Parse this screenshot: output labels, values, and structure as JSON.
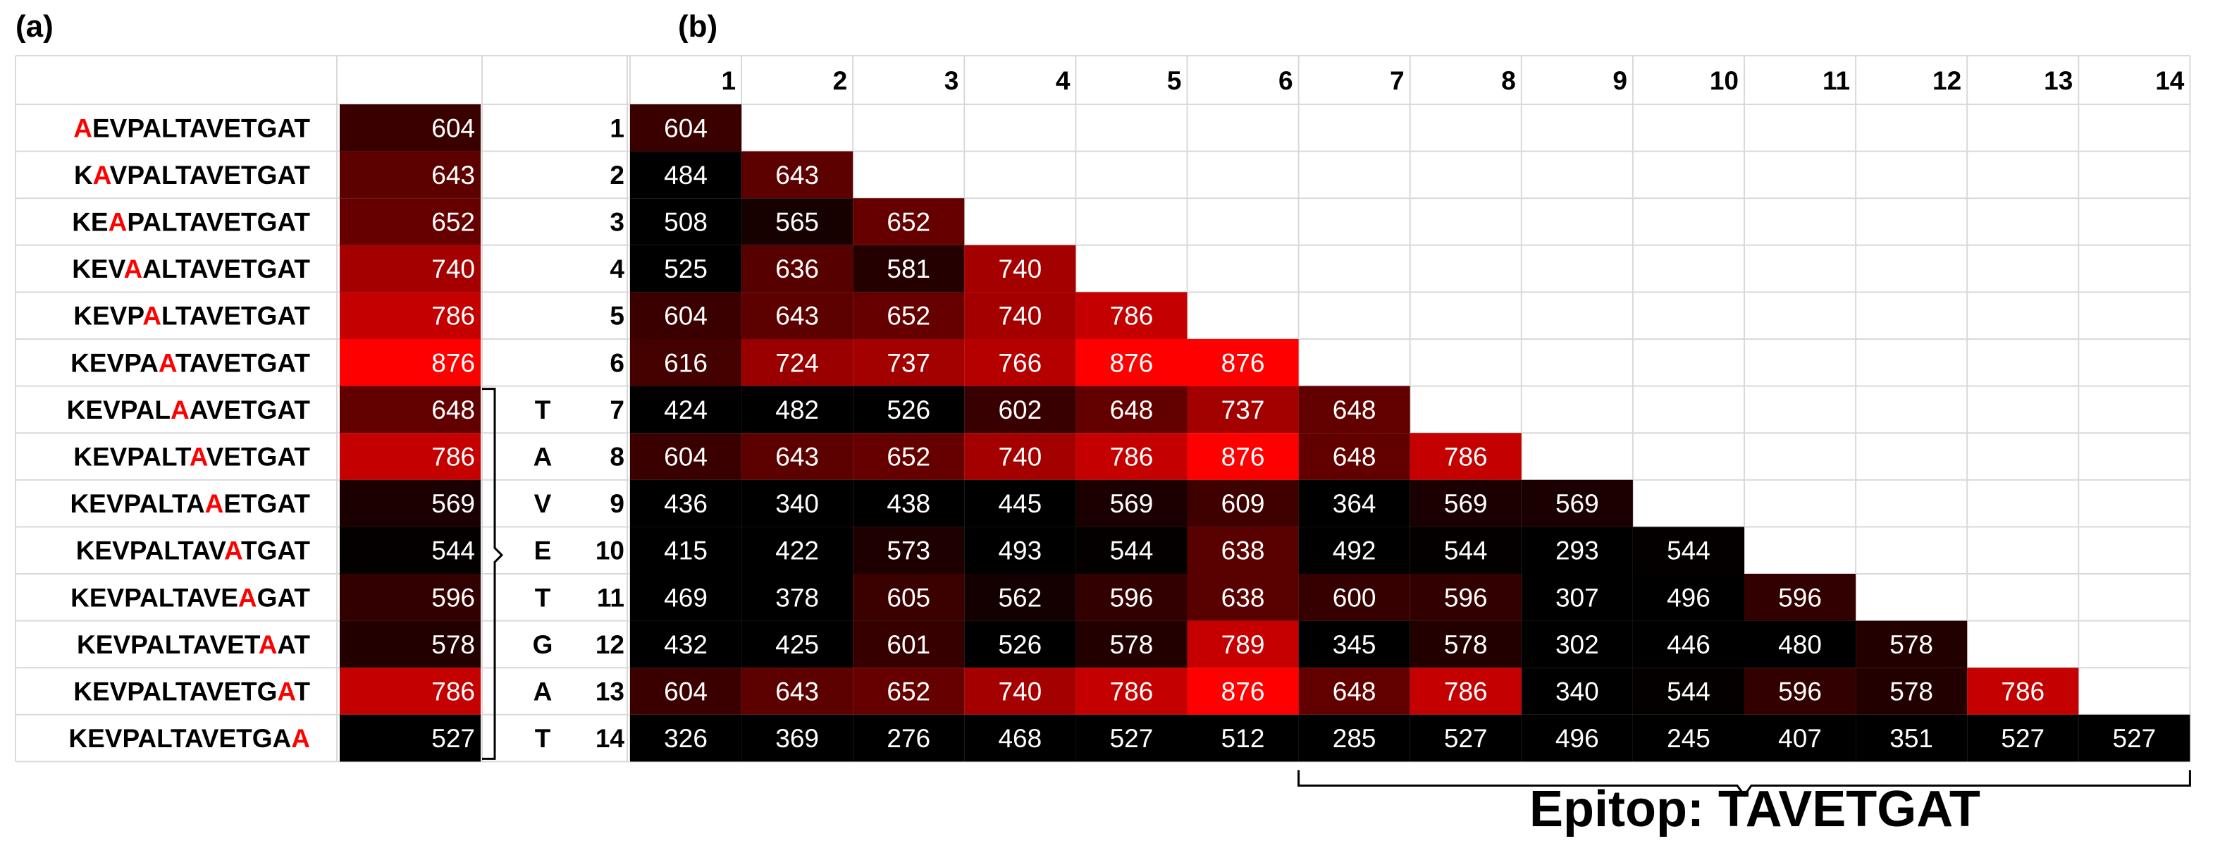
{
  "panel_labels": {
    "a": "(a)",
    "b": "(b)"
  },
  "epitope_label": "Epitop: TAVETGAT",
  "colors": {
    "low": "#000000",
    "mid": "#7a0000",
    "high": "#ff0000",
    "mutation": "#ff0000",
    "grid": "#d9d9d9"
  },
  "chart_data": [
    {
      "type": "heatmap",
      "panel": "(a)",
      "rows": [
        {
          "sequence": "AEVPALTAVETGAT",
          "mutation_index": 0,
          "value": 604
        },
        {
          "sequence": "KAVPALTAVETGAT",
          "mutation_index": 1,
          "value": 643
        },
        {
          "sequence": "KEAPALTAVETGAT",
          "mutation_index": 2,
          "value": 652
        },
        {
          "sequence": "KEVAALTAVETGAT",
          "mutation_index": 3,
          "value": 740
        },
        {
          "sequence": "KEVPALTAVETGAT",
          "mutation_index": 4,
          "value": 786
        },
        {
          "sequence": "KEVPAATAVETGAT",
          "mutation_index": 5,
          "value": 876
        },
        {
          "sequence": "KEVPALAAVETGAT",
          "mutation_index": 6,
          "value": 648
        },
        {
          "sequence": "KEVPALTAVETGAT",
          "mutation_index": 7,
          "value": 786
        },
        {
          "sequence": "KEVPALTAAETGAT",
          "mutation_index": 8,
          "value": 569
        },
        {
          "sequence": "KEVPALTAVATGAT",
          "mutation_index": 9,
          "value": 544
        },
        {
          "sequence": "KEVPALTAVEAGAT",
          "mutation_index": 10,
          "value": 596
        },
        {
          "sequence": "KEVPALTAVETAAT",
          "mutation_index": 11,
          "value": 578
        },
        {
          "sequence": "KEVPALTAVETGAT",
          "mutation_index": 12,
          "value": 786
        },
        {
          "sequence": "KEVPALTAVETGAA",
          "mutation_index": 13,
          "value": 527
        }
      ]
    },
    {
      "type": "heatmap",
      "panel": "(b)",
      "x": [
        "1",
        "2",
        "3",
        "4",
        "5",
        "6",
        "7",
        "8",
        "9",
        "10",
        "11",
        "12",
        "13",
        "14"
      ],
      "y": [
        "1",
        "2",
        "3",
        "4",
        "5",
        "6",
        "7",
        "8",
        "9",
        "10",
        "11",
        "12",
        "13",
        "14"
      ],
      "residue_labels": [
        "",
        "",
        "",
        "",
        "",
        "",
        "T",
        "A",
        "V",
        "E",
        "T",
        "G",
        "A",
        "T"
      ],
      "values": [
        [
          604
        ],
        [
          484,
          643
        ],
        [
          508,
          565,
          652
        ],
        [
          525,
          636,
          581,
          740
        ],
        [
          604,
          643,
          652,
          740,
          786
        ],
        [
          616,
          724,
          737,
          766,
          876,
          876
        ],
        [
          424,
          482,
          526,
          602,
          648,
          737,
          648
        ],
        [
          604,
          643,
          652,
          740,
          786,
          876,
          648,
          786
        ],
        [
          436,
          340,
          438,
          445,
          569,
          609,
          364,
          569,
          569
        ],
        [
          415,
          422,
          573,
          493,
          544,
          638,
          492,
          544,
          293,
          544
        ],
        [
          469,
          378,
          605,
          562,
          596,
          638,
          600,
          596,
          307,
          496,
          596
        ],
        [
          432,
          425,
          601,
          526,
          578,
          789,
          345,
          578,
          302,
          446,
          480,
          578
        ],
        [
          604,
          643,
          652,
          740,
          786,
          876,
          648,
          786,
          340,
          544,
          596,
          578,
          786
        ],
        [
          326,
          369,
          276,
          468,
          527,
          512,
          285,
          527,
          496,
          245,
          407,
          351,
          527,
          527
        ]
      ]
    }
  ]
}
